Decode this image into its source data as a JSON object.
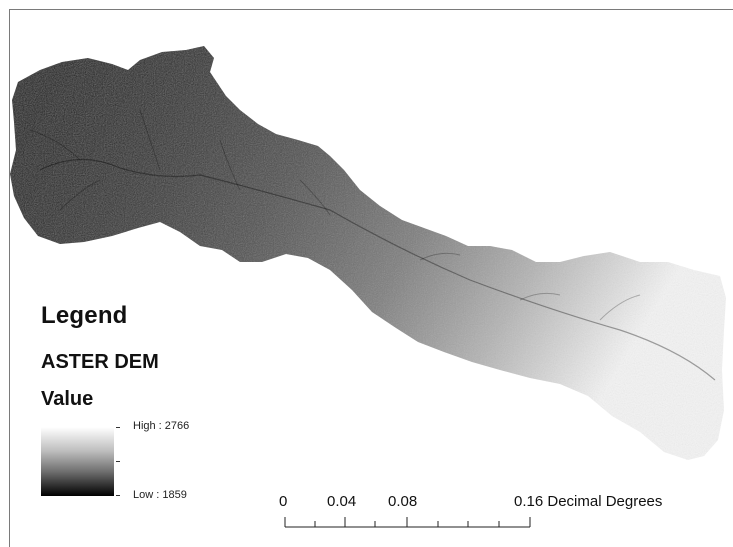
{
  "legend": {
    "title": "Legend",
    "layer_name": "ASTER DEM",
    "field_name": "Value",
    "high_label": "High : 2766",
    "low_label": "Low : 1859"
  },
  "scale_bar": {
    "labels": [
      "0",
      "0.04",
      "0.08"
    ],
    "end_label": "0.16 Decimal Degrees"
  },
  "colors": {
    "elevation_low": "#0a0a0a",
    "elevation_high": "#f2f2f2",
    "background": "#ffffff"
  }
}
